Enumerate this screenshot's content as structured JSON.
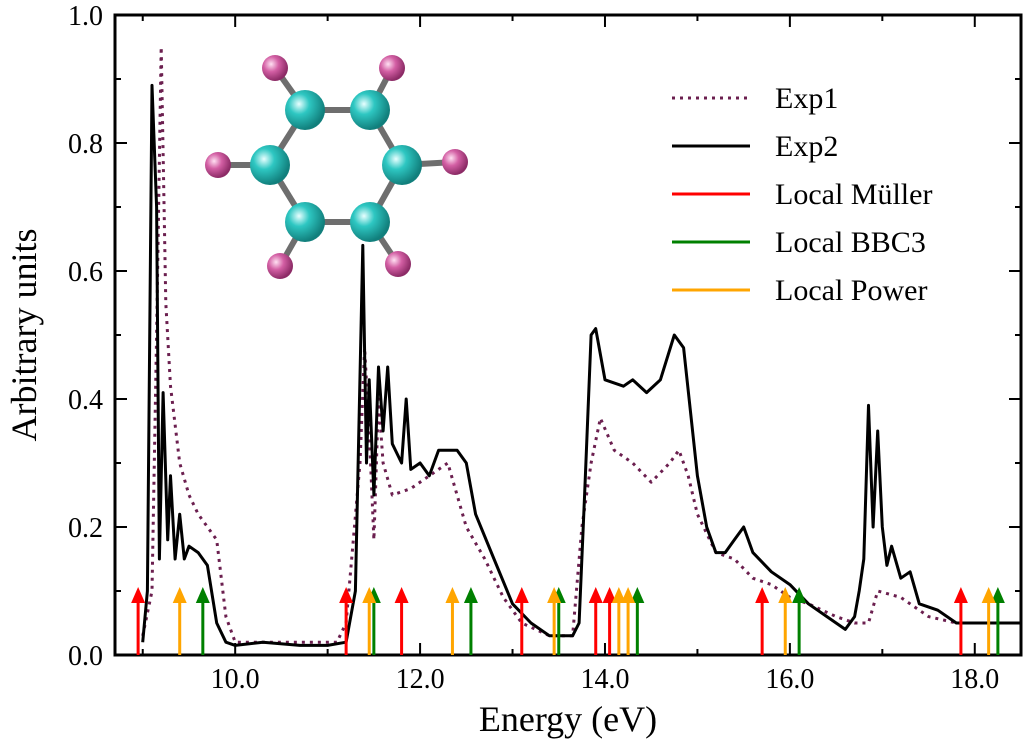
{
  "chart_data": {
    "type": "line",
    "xlabel": "Energy (eV)",
    "ylabel": "Arbitrary units",
    "xlim": [
      8.7,
      18.5
    ],
    "ylim": [
      0.0,
      1.0
    ],
    "x_ticks": [
      10.0,
      12.0,
      14.0,
      16.0,
      18.0
    ],
    "x_tick_labels": [
      "10.0",
      "12.0",
      "14.0",
      "16.0",
      "18.0"
    ],
    "y_ticks": [
      0.0,
      0.2,
      0.4,
      0.6,
      0.8,
      1.0
    ],
    "y_tick_labels": [
      "0.0",
      "0.2",
      "0.4",
      "0.6",
      "0.8",
      "1.0"
    ],
    "legend_position": "top-right",
    "series": [
      {
        "name": "Exp1",
        "style": "dotted",
        "color": "#6b1f4f",
        "points": [
          [
            9.0,
            0.03
          ],
          [
            9.1,
            0.1
          ],
          [
            9.15,
            0.5
          ],
          [
            9.2,
            0.95
          ],
          [
            9.25,
            0.55
          ],
          [
            9.3,
            0.42
          ],
          [
            9.4,
            0.3
          ],
          [
            9.5,
            0.25
          ],
          [
            9.6,
            0.22
          ],
          [
            9.8,
            0.18
          ],
          [
            9.9,
            0.06
          ],
          [
            10.0,
            0.02
          ],
          [
            11.1,
            0.02
          ],
          [
            11.2,
            0.05
          ],
          [
            11.35,
            0.3
          ],
          [
            11.4,
            0.48
          ],
          [
            11.45,
            0.35
          ],
          [
            11.5,
            0.18
          ],
          [
            11.55,
            0.4
          ],
          [
            11.6,
            0.3
          ],
          [
            11.7,
            0.25
          ],
          [
            11.9,
            0.26
          ],
          [
            12.1,
            0.28
          ],
          [
            12.3,
            0.3
          ],
          [
            12.5,
            0.2
          ],
          [
            12.7,
            0.15
          ],
          [
            12.9,
            0.09
          ],
          [
            13.1,
            0.05
          ],
          [
            13.4,
            0.03
          ],
          [
            13.65,
            0.03
          ],
          [
            13.75,
            0.2
          ],
          [
            13.85,
            0.3
          ],
          [
            13.95,
            0.37
          ],
          [
            14.1,
            0.32
          ],
          [
            14.3,
            0.3
          ],
          [
            14.5,
            0.27
          ],
          [
            14.7,
            0.3
          ],
          [
            14.8,
            0.32
          ],
          [
            14.9,
            0.28
          ],
          [
            15.0,
            0.22
          ],
          [
            15.2,
            0.16
          ],
          [
            15.4,
            0.15
          ],
          [
            15.6,
            0.12
          ],
          [
            15.8,
            0.11
          ],
          [
            16.0,
            0.09
          ],
          [
            16.2,
            0.08
          ],
          [
            16.5,
            0.06
          ],
          [
            16.7,
            0.05
          ],
          [
            16.85,
            0.05
          ],
          [
            16.95,
            0.1
          ],
          [
            17.2,
            0.09
          ],
          [
            17.5,
            0.06
          ],
          [
            17.8,
            0.05
          ],
          [
            18.5,
            0.05
          ]
        ]
      },
      {
        "name": "Exp2",
        "style": "solid",
        "color": "#000000",
        "points": [
          [
            9.0,
            0.02
          ],
          [
            9.05,
            0.1
          ],
          [
            9.1,
            0.89
          ],
          [
            9.15,
            0.7
          ],
          [
            9.18,
            0.15
          ],
          [
            9.22,
            0.41
          ],
          [
            9.27,
            0.18
          ],
          [
            9.3,
            0.28
          ],
          [
            9.35,
            0.15
          ],
          [
            9.4,
            0.22
          ],
          [
            9.45,
            0.15
          ],
          [
            9.5,
            0.17
          ],
          [
            9.6,
            0.16
          ],
          [
            9.7,
            0.14
          ],
          [
            9.8,
            0.05
          ],
          [
            9.9,
            0.02
          ],
          [
            10.0,
            0.015
          ],
          [
            10.3,
            0.02
          ],
          [
            10.7,
            0.015
          ],
          [
            11.0,
            0.015
          ],
          [
            11.2,
            0.02
          ],
          [
            11.3,
            0.1
          ],
          [
            11.38,
            0.64
          ],
          [
            11.42,
            0.3
          ],
          [
            11.45,
            0.43
          ],
          [
            11.5,
            0.25
          ],
          [
            11.55,
            0.45
          ],
          [
            11.6,
            0.35
          ],
          [
            11.65,
            0.45
          ],
          [
            11.7,
            0.33
          ],
          [
            11.8,
            0.3
          ],
          [
            11.85,
            0.4
          ],
          [
            11.9,
            0.29
          ],
          [
            12.0,
            0.3
          ],
          [
            12.1,
            0.28
          ],
          [
            12.2,
            0.32
          ],
          [
            12.4,
            0.32
          ],
          [
            12.5,
            0.3
          ],
          [
            12.6,
            0.22
          ],
          [
            12.8,
            0.15
          ],
          [
            13.0,
            0.08
          ],
          [
            13.2,
            0.05
          ],
          [
            13.4,
            0.03
          ],
          [
            13.65,
            0.03
          ],
          [
            13.72,
            0.05
          ],
          [
            13.78,
            0.25
          ],
          [
            13.85,
            0.5
          ],
          [
            13.9,
            0.51
          ],
          [
            14.0,
            0.43
          ],
          [
            14.2,
            0.42
          ],
          [
            14.3,
            0.43
          ],
          [
            14.45,
            0.41
          ],
          [
            14.6,
            0.43
          ],
          [
            14.75,
            0.5
          ],
          [
            14.85,
            0.48
          ],
          [
            15.0,
            0.28
          ],
          [
            15.1,
            0.2
          ],
          [
            15.2,
            0.16
          ],
          [
            15.3,
            0.16
          ],
          [
            15.4,
            0.18
          ],
          [
            15.5,
            0.2
          ],
          [
            15.6,
            0.16
          ],
          [
            15.8,
            0.13
          ],
          [
            16.0,
            0.11
          ],
          [
            16.2,
            0.08
          ],
          [
            16.4,
            0.06
          ],
          [
            16.6,
            0.04
          ],
          [
            16.7,
            0.06
          ],
          [
            16.75,
            0.1
          ],
          [
            16.8,
            0.15
          ],
          [
            16.85,
            0.39
          ],
          [
            16.9,
            0.2
          ],
          [
            16.95,
            0.35
          ],
          [
            17.0,
            0.2
          ],
          [
            17.05,
            0.14
          ],
          [
            17.1,
            0.17
          ],
          [
            17.2,
            0.12
          ],
          [
            17.3,
            0.13
          ],
          [
            17.4,
            0.08
          ],
          [
            17.6,
            0.07
          ],
          [
            17.8,
            0.05
          ],
          [
            18.0,
            0.05
          ],
          [
            18.5,
            0.05
          ]
        ]
      }
    ],
    "arrow_height": 0.1,
    "arrow_series": [
      {
        "name": "Local Müller",
        "color": "#ff0000",
        "x": [
          8.95,
          11.2,
          11.8,
          13.1,
          13.9,
          14.05,
          15.7,
          17.85
        ]
      },
      {
        "name": "Local BBC3",
        "color": "#008000",
        "x": [
          9.65,
          11.5,
          12.55,
          13.5,
          14.35,
          16.1,
          18.25
        ]
      },
      {
        "name": "Local Power",
        "color": "#ffa500",
        "x": [
          9.4,
          11.45,
          12.35,
          13.45,
          14.15,
          14.25,
          15.95,
          18.15
        ]
      }
    ],
    "legend": [
      {
        "label": "Exp1",
        "style": "dotted",
        "color": "#6b1f4f"
      },
      {
        "label": "Exp2",
        "style": "solid",
        "color": "#000000"
      },
      {
        "label": "Local Müller",
        "style": "solid",
        "color": "#ff0000"
      },
      {
        "label": "Local BBC3",
        "style": "solid",
        "color": "#008000"
      },
      {
        "label": "Local Power",
        "style": "solid",
        "color": "#ffa500"
      }
    ],
    "inset": {
      "description": "molecule",
      "carbon_color": "#2ec7c2",
      "fluorine_color": "#d35fa4",
      "bond_color": "#6e6e6e"
    }
  }
}
